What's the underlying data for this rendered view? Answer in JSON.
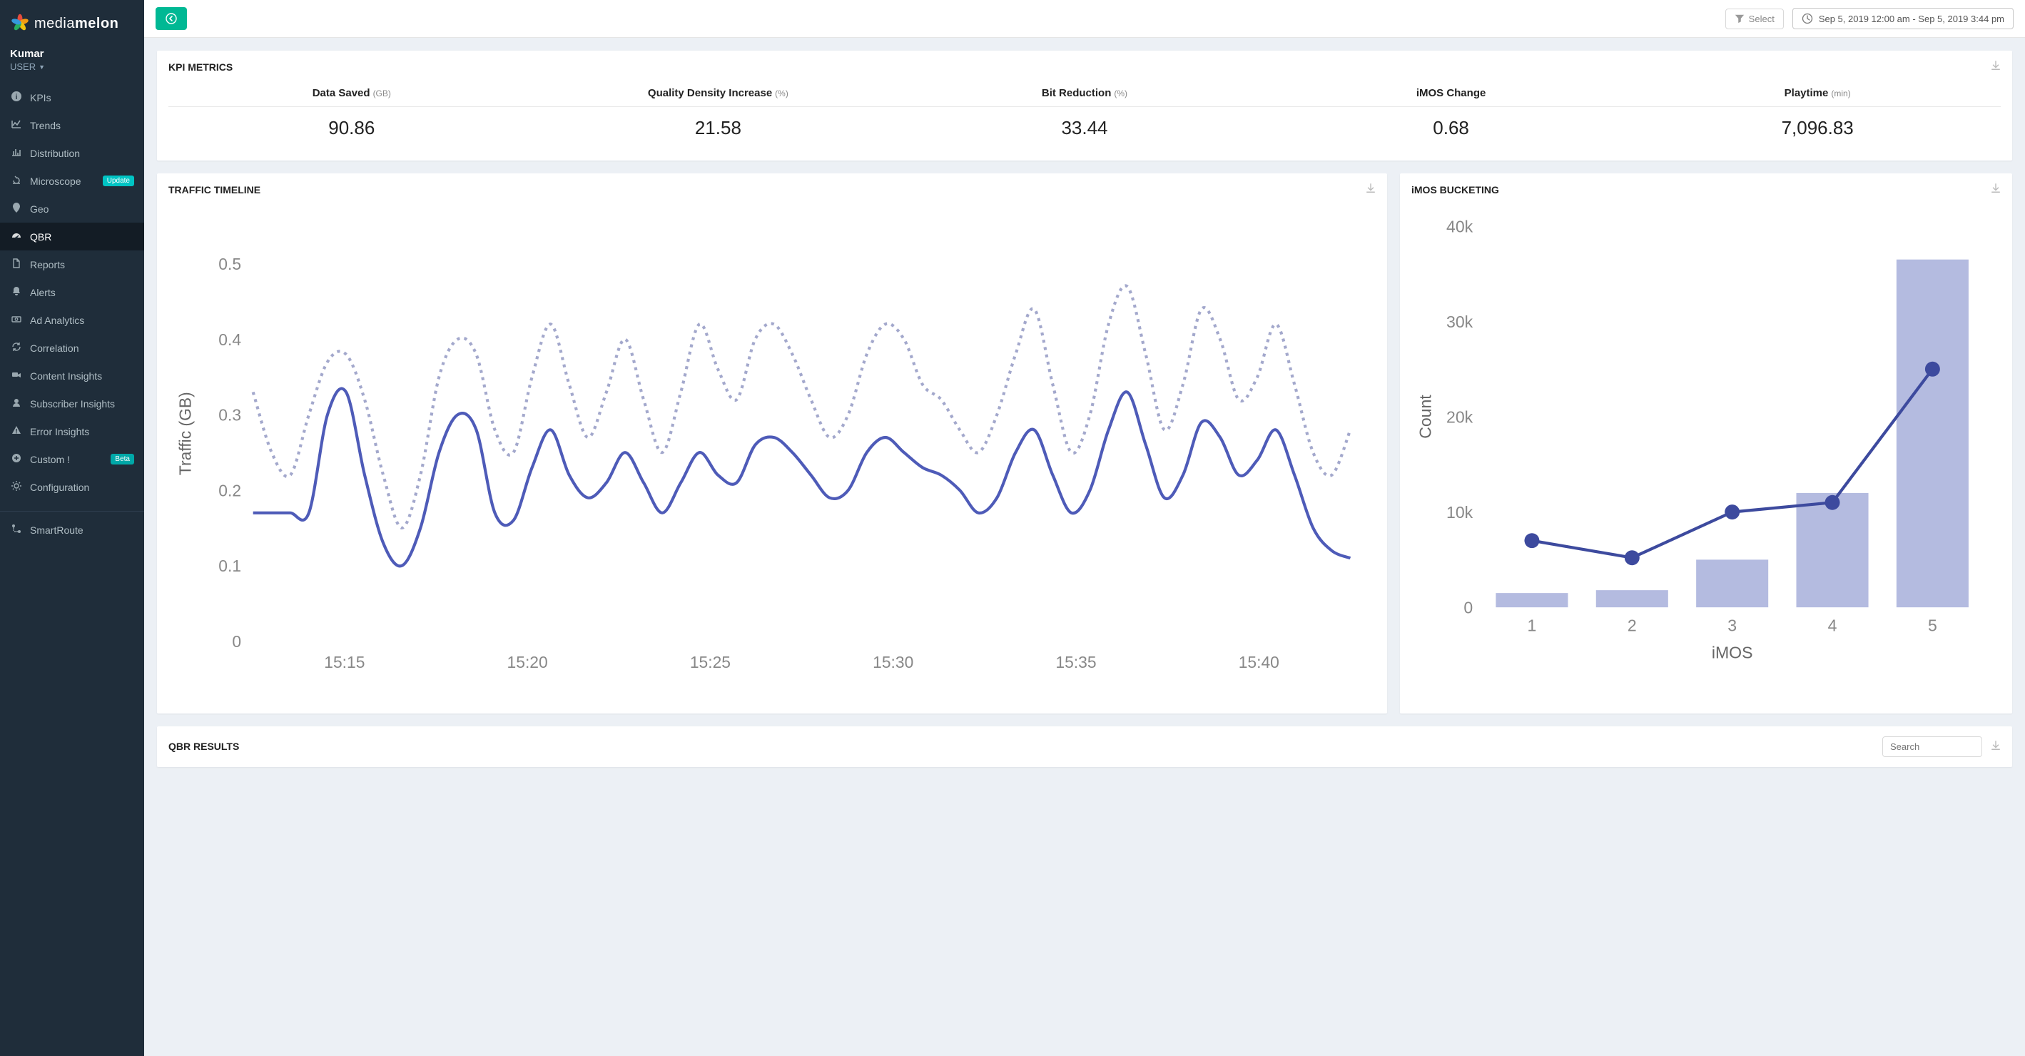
{
  "brand": {
    "name_a": "media",
    "name_b": "melon"
  },
  "user": {
    "name": "Kumar",
    "role": "USER"
  },
  "sidebar": {
    "items": [
      {
        "label": "KPIs",
        "icon": "info"
      },
      {
        "label": "Trends",
        "icon": "chart-line"
      },
      {
        "label": "Distribution",
        "icon": "chart-bar"
      },
      {
        "label": "Microscope",
        "icon": "microscope",
        "badge": "Update",
        "badge_class": "badge-update"
      },
      {
        "label": "Geo",
        "icon": "marker"
      },
      {
        "label": "QBR",
        "icon": "gauge",
        "active": true
      },
      {
        "label": "Reports",
        "icon": "file"
      },
      {
        "label": "Alerts",
        "icon": "bell"
      },
      {
        "label": "Ad Analytics",
        "icon": "cash"
      },
      {
        "label": "Correlation",
        "icon": "refresh"
      },
      {
        "label": "Content Insights",
        "icon": "video"
      },
      {
        "label": "Subscriber Insights",
        "icon": "user"
      },
      {
        "label": "Error Insights",
        "icon": "alert"
      },
      {
        "label": "Custom !",
        "icon": "plus",
        "badge": "Beta",
        "badge_class": "badge-beta"
      },
      {
        "label": "Configuration",
        "icon": "gear"
      }
    ],
    "secondary": [
      {
        "label": "SmartRoute",
        "icon": "route"
      }
    ]
  },
  "topbar": {
    "select_label": "Select",
    "date_range": "Sep 5, 2019 12:00 am - Sep 5, 2019 3:44 pm"
  },
  "kpi": {
    "title": "KPI METRICS",
    "metrics": [
      {
        "label": "Data Saved",
        "unit": "(GB)",
        "value": "90.86"
      },
      {
        "label": "Quality Density Increase",
        "unit": "(%)",
        "value": "21.58"
      },
      {
        "label": "Bit Reduction",
        "unit": "(%)",
        "value": "33.44"
      },
      {
        "label": "iMOS Change",
        "unit": "",
        "value": "0.68"
      },
      {
        "label": "Playtime",
        "unit": "(min)",
        "value": "7,096.83"
      }
    ]
  },
  "traffic": {
    "title": "TRAFFIC TIMELINE",
    "type": "line-dual",
    "ylabel": "Traffic (GB)",
    "ylim": [
      0,
      0.55
    ],
    "yticks": [
      0,
      0.1,
      0.2,
      0.3,
      0.4,
      0.5
    ],
    "xticks": [
      "15:15",
      "15:20",
      "15:25",
      "15:30",
      "15:35",
      "15:40"
    ],
    "series_solid_color": "#4e5bb8",
    "series_dotted_color": "#a3a8cc",
    "line_width_solid": 2,
    "line_width_dotted": 2,
    "dash_pattern": "2,3",
    "background_color": "#ffffff",
    "grid_color": "#f0f0f0",
    "x": [
      0,
      1,
      2,
      3,
      4,
      5,
      6,
      7,
      8,
      9,
      10,
      11,
      12,
      13,
      14,
      15,
      16,
      17,
      18,
      19,
      20,
      21,
      22,
      23,
      24,
      25,
      26,
      27,
      28,
      29,
      30,
      31,
      32,
      33,
      34,
      35,
      36,
      37,
      38,
      39,
      40,
      41,
      42,
      43,
      44,
      45,
      46,
      47,
      48,
      49,
      50,
      51,
      52,
      53,
      54,
      55,
      56,
      57,
      58,
      59
    ],
    "solid": [
      0.17,
      0.17,
      0.17,
      0.17,
      0.3,
      0.33,
      0.22,
      0.13,
      0.1,
      0.15,
      0.25,
      0.3,
      0.28,
      0.17,
      0.16,
      0.23,
      0.28,
      0.22,
      0.19,
      0.21,
      0.25,
      0.21,
      0.17,
      0.21,
      0.25,
      0.22,
      0.21,
      0.26,
      0.27,
      0.25,
      0.22,
      0.19,
      0.2,
      0.25,
      0.27,
      0.25,
      0.23,
      0.22,
      0.2,
      0.17,
      0.19,
      0.25,
      0.28,
      0.22,
      0.17,
      0.2,
      0.28,
      0.33,
      0.26,
      0.19,
      0.22,
      0.29,
      0.27,
      0.22,
      0.24,
      0.28,
      0.22,
      0.15,
      0.12,
      0.11
    ],
    "dotted": [
      0.33,
      0.25,
      0.22,
      0.3,
      0.37,
      0.38,
      0.32,
      0.22,
      0.15,
      0.22,
      0.35,
      0.4,
      0.38,
      0.28,
      0.25,
      0.35,
      0.42,
      0.34,
      0.27,
      0.33,
      0.4,
      0.32,
      0.25,
      0.33,
      0.42,
      0.36,
      0.32,
      0.4,
      0.42,
      0.38,
      0.32,
      0.27,
      0.3,
      0.38,
      0.42,
      0.4,
      0.34,
      0.32,
      0.28,
      0.25,
      0.3,
      0.38,
      0.44,
      0.34,
      0.25,
      0.3,
      0.42,
      0.47,
      0.38,
      0.28,
      0.34,
      0.44,
      0.4,
      0.32,
      0.35,
      0.42,
      0.34,
      0.25,
      0.22,
      0.28
    ]
  },
  "imos": {
    "title": "iMOS BUCKETING",
    "type": "bar+line",
    "xlabel": "iMOS",
    "ylabel": "Count",
    "categories": [
      "1",
      "2",
      "3",
      "4",
      "5"
    ],
    "bar_values": [
      1500,
      1800,
      5000,
      12000,
      36500
    ],
    "line_values": [
      7000,
      5200,
      10000,
      11000,
      25000
    ],
    "bar_color": "#9ba4d6",
    "bar_opacity": 0.75,
    "line_color": "#3d4a9e",
    "marker_color": "#3d4a9e",
    "marker_radius": 5,
    "line_width": 2,
    "ylim": [
      0,
      40000
    ],
    "yticks": [
      0,
      10000,
      20000,
      30000,
      40000
    ],
    "ytick_labels": [
      "0",
      "10k",
      "20k",
      "30k",
      "40k"
    ],
    "background_color": "#ffffff"
  },
  "qbr": {
    "title": "QBR RESULTS",
    "search_placeholder": "Search"
  }
}
